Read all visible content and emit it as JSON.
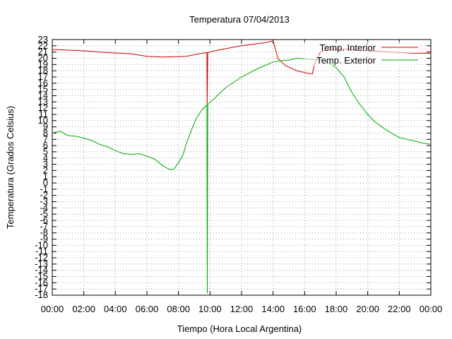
{
  "chart_data": {
    "type": "line",
    "title": "Temperatura 07/04/2013",
    "xlabel": "Tiempo (Hora Local Argentina)",
    "ylabel": "Temperatura (Grados Celsius)",
    "xlim": [
      0,
      24
    ],
    "ylim": [
      -18,
      23
    ],
    "grid": true,
    "legend_position": "top-right",
    "x_tick_labels": [
      "00:00",
      "02:00",
      "04:00",
      "06:00",
      "08:00",
      "10:00",
      "12:00",
      "14:00",
      "16:00",
      "18:00",
      "20:00",
      "22:00",
      "00:00"
    ],
    "y_ticks": [
      23,
      22,
      21,
      20,
      19,
      18,
      17,
      16,
      15,
      14,
      13,
      12,
      11,
      10,
      9,
      8,
      7,
      6,
      5,
      4,
      3,
      2,
      1,
      0,
      -1,
      -2,
      -3,
      -4,
      -5,
      -6,
      -7,
      -8,
      -9,
      -10,
      -11,
      -12,
      -13,
      -14,
      -15,
      -16,
      -17,
      -18
    ],
    "series": [
      {
        "name": "Temp. Interior",
        "color": "#cc0000",
        "points": [
          [
            0,
            21.4
          ],
          [
            2,
            21.2
          ],
          [
            3.5,
            20.9
          ],
          [
            5,
            20.7
          ],
          [
            6,
            20.3
          ],
          [
            7,
            20.2
          ],
          [
            8.5,
            20.3
          ],
          [
            9.5,
            20.8
          ],
          [
            9.8,
            20.9
          ],
          [
            9.82,
            12.6
          ],
          [
            9.86,
            20.9
          ],
          [
            10.5,
            21.3
          ],
          [
            12,
            22.0
          ],
          [
            13.5,
            22.5
          ],
          [
            14,
            22.8
          ],
          [
            14.3,
            20.0
          ],
          [
            14.8,
            18.8
          ],
          [
            15.5,
            18.0
          ],
          [
            16.2,
            17.6
          ],
          [
            16.5,
            17.5
          ],
          [
            16.6,
            18.9
          ],
          [
            17,
            21.0
          ],
          [
            17.5,
            21.4
          ],
          [
            18.5,
            21.5
          ],
          [
            20,
            21.2
          ],
          [
            21.5,
            21.0
          ],
          [
            23,
            20.8
          ],
          [
            24,
            20.8
          ]
        ]
      },
      {
        "name": "Temp. Exterior",
        "color": "#00aa00",
        "points": [
          [
            0,
            8.0
          ],
          [
            0.5,
            8.3
          ],
          [
            1,
            7.6
          ],
          [
            1.5,
            7.5
          ],
          [
            2,
            7.2
          ],
          [
            2.5,
            6.8
          ],
          [
            3,
            6.2
          ],
          [
            3.5,
            5.8
          ],
          [
            4,
            5.2
          ],
          [
            4.5,
            4.7
          ],
          [
            5,
            4.6
          ],
          [
            5.5,
            4.7
          ],
          [
            6,
            4.3
          ],
          [
            6.5,
            3.8
          ],
          [
            7,
            2.8
          ],
          [
            7.4,
            2.2
          ],
          [
            7.7,
            2.2
          ],
          [
            8,
            3.2
          ],
          [
            8.3,
            4.6
          ],
          [
            8.5,
            6.3
          ],
          [
            8.8,
            8.3
          ],
          [
            9.1,
            10.2
          ],
          [
            9.5,
            11.8
          ],
          [
            9.8,
            12.5
          ],
          [
            9.83,
            -17.7
          ],
          [
            9.86,
            12.6
          ],
          [
            10.3,
            13.6
          ],
          [
            11,
            15.3
          ],
          [
            12,
            17.0
          ],
          [
            13,
            18.3
          ],
          [
            14,
            19.4
          ],
          [
            14.5,
            19.6
          ],
          [
            15,
            19.7
          ],
          [
            15.5,
            20.0
          ],
          [
            16,
            19.9
          ],
          [
            16.5,
            19.8
          ],
          [
            17,
            19.8
          ],
          [
            17.5,
            19.3
          ],
          [
            18,
            18.5
          ],
          [
            18.5,
            17.0
          ],
          [
            19,
            14.5
          ],
          [
            19.5,
            12.6
          ],
          [
            20,
            11.0
          ],
          [
            20.5,
            9.7
          ],
          [
            21,
            8.8
          ],
          [
            21.5,
            8.0
          ],
          [
            22,
            7.3
          ],
          [
            22.5,
            7.0
          ],
          [
            23,
            6.7
          ],
          [
            23.5,
            6.4
          ],
          [
            24,
            6.2
          ]
        ]
      }
    ]
  }
}
